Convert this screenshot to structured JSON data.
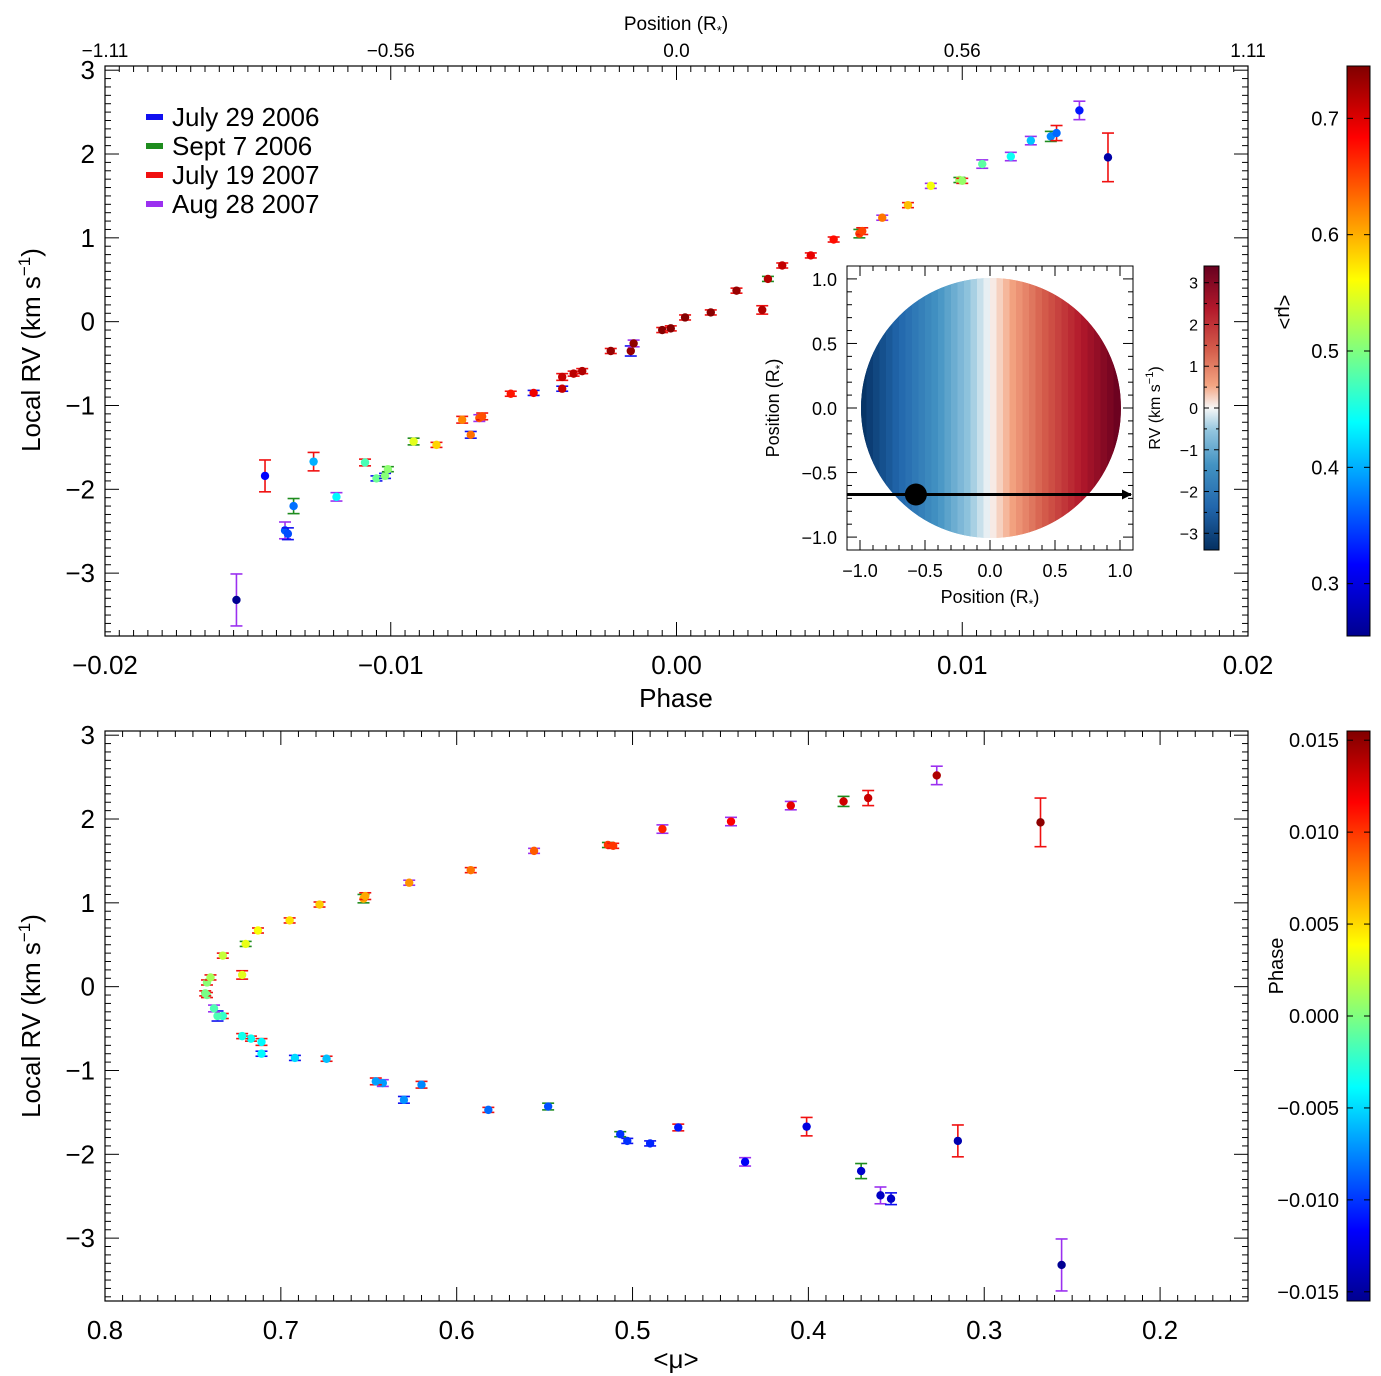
{
  "chart_data": [
    {
      "type": "scatter",
      "xlabel": "Phase",
      "ylabel": "Local RV (km s",
      "ylabel_sup": "−1",
      "ylabel_close": ")",
      "top_axis_label": "Position (R",
      "top_axis_label_sub": "*",
      "top_axis_label_close": ")",
      "xlim": [
        -0.02,
        0.02
      ],
      "ylim": [
        -3.75,
        3.05
      ],
      "xticks": [
        -0.02,
        -0.01,
        0.0,
        0.01,
        0.02
      ],
      "xtick_labels": [
        "−0.02",
        "−0.01",
        "0.00",
        "0.01",
        "0.02"
      ],
      "yticks": [
        -3,
        -2,
        -1,
        0,
        1,
        2,
        3
      ],
      "ytick_labels": [
        "−3",
        "−2",
        "−1",
        "0",
        "1",
        "2",
        "3"
      ],
      "top_ticks": [
        -0.02,
        -0.01,
        0.0,
        0.01,
        0.02
      ],
      "top_tick_labels": [
        "−1.11",
        "−0.56",
        "0.0",
        "0.56",
        "1.11"
      ],
      "legend_position": "top-left",
      "legend": [
        {
          "label": "July 29 2006",
          "color": "#1010f0"
        },
        {
          "label": "Sept 7 2006",
          "color": "#1e8c1e"
        },
        {
          "label": "July 19 2007",
          "color": "#f01010"
        },
        {
          "label": "Aug 28 2007",
          "color": "#9b30f0"
        }
      ],
      "color_encoding": "<μ>",
      "colorbar": {
        "label": "<μ>",
        "range": [
          0.255,
          0.745
        ],
        "ticks": [
          0.3,
          0.4,
          0.5,
          0.6,
          0.7
        ],
        "tick_labels": [
          "0.3",
          "0.4",
          "0.5",
          "0.6",
          "0.7"
        ]
      },
      "points": [
        {
          "x": -0.0154,
          "y": -3.32,
          "err": 0.31,
          "mu": 0.256,
          "night": 3
        },
        {
          "x": -0.0144,
          "y": -1.84,
          "err": 0.19,
          "mu": 0.315,
          "night": 2
        },
        {
          "x": -0.0137,
          "y": -2.49,
          "err": 0.1,
          "mu": 0.359,
          "night": 3
        },
        {
          "x": -0.0136,
          "y": -2.53,
          "err": 0.07,
          "mu": 0.353,
          "night": 0
        },
        {
          "x": -0.0134,
          "y": -2.2,
          "err": 0.09,
          "mu": 0.37,
          "night": 1
        },
        {
          "x": -0.0127,
          "y": -1.67,
          "err": 0.11,
          "mu": 0.401,
          "night": 2
        },
        {
          "x": -0.0119,
          "y": -2.09,
          "err": 0.05,
          "mu": 0.436,
          "night": 3
        },
        {
          "x": -0.0109,
          "y": -1.68,
          "err": 0.04,
          "mu": 0.474,
          "night": 2
        },
        {
          "x": -0.0105,
          "y": -1.87,
          "err": 0.03,
          "mu": 0.49,
          "night": 0
        },
        {
          "x": -0.0102,
          "y": -1.84,
          "err": 0.03,
          "mu": 0.503,
          "night": 0
        },
        {
          "x": -0.0101,
          "y": -1.76,
          "err": 0.03,
          "mu": 0.507,
          "night": 1
        },
        {
          "x": -0.0092,
          "y": -1.43,
          "err": 0.04,
          "mu": 0.548,
          "night": 1
        },
        {
          "x": -0.0084,
          "y": -1.47,
          "err": 0.03,
          "mu": 0.582,
          "night": 2
        },
        {
          "x": -0.0075,
          "y": -1.17,
          "err": 0.04,
          "mu": 0.62,
          "night": 2
        },
        {
          "x": -0.0072,
          "y": -1.35,
          "err": 0.04,
          "mu": 0.63,
          "night": 0
        },
        {
          "x": -0.0069,
          "y": -1.15,
          "err": 0.04,
          "mu": 0.642,
          "night": 3
        },
        {
          "x": -0.0068,
          "y": -1.13,
          "err": 0.04,
          "mu": 0.646,
          "night": 2
        },
        {
          "x": -0.0058,
          "y": -0.86,
          "err": 0.03,
          "mu": 0.674,
          "night": 2
        },
        {
          "x": -0.005,
          "y": -0.85,
          "err": 0.03,
          "mu": 0.692,
          "night": 0
        },
        {
          "x": -0.004,
          "y": -0.8,
          "err": 0.03,
          "mu": 0.711,
          "night": 0
        },
        {
          "x": -0.004,
          "y": -0.66,
          "err": 0.04,
          "mu": 0.711,
          "night": 2
        },
        {
          "x": -0.0036,
          "y": -0.62,
          "err": 0.03,
          "mu": 0.717,
          "night": 2
        },
        {
          "x": -0.0033,
          "y": -0.59,
          "err": 0.03,
          "mu": 0.722,
          "night": 2
        },
        {
          "x": -0.0023,
          "y": -0.35,
          "err": 0.03,
          "mu": 0.733,
          "night": 2
        },
        {
          "x": -0.0016,
          "y": -0.35,
          "err": 0.06,
          "mu": 0.736,
          "night": 0
        },
        {
          "x": -0.0015,
          "y": -0.26,
          "err": 0.04,
          "mu": 0.738,
          "night": 3
        },
        {
          "x": -0.0005,
          "y": -0.1,
          "err": 0.03,
          "mu": 0.742,
          "night": 2
        },
        {
          "x": -0.0002,
          "y": -0.08,
          "err": 0.03,
          "mu": 0.743,
          "night": 2
        },
        {
          "x": 0.0003,
          "y": 0.05,
          "err": 0.03,
          "mu": 0.742,
          "night": 2
        },
        {
          "x": 0.0012,
          "y": 0.11,
          "err": 0.03,
          "mu": 0.74,
          "night": 2
        },
        {
          "x": 0.0021,
          "y": 0.37,
          "err": 0.03,
          "mu": 0.733,
          "night": 2
        },
        {
          "x": 0.003,
          "y": 0.14,
          "err": 0.05,
          "mu": 0.722,
          "night": 2
        },
        {
          "x": 0.0032,
          "y": 0.51,
          "err": 0.03,
          "mu": 0.72,
          "night": 1
        },
        {
          "x": 0.0037,
          "y": 0.67,
          "err": 0.03,
          "mu": 0.713,
          "night": 2
        },
        {
          "x": 0.0047,
          "y": 0.79,
          "err": 0.03,
          "mu": 0.695,
          "night": 2
        },
        {
          "x": 0.0055,
          "y": 0.98,
          "err": 0.03,
          "mu": 0.678,
          "night": 2
        },
        {
          "x": 0.0064,
          "y": 1.05,
          "err": 0.05,
          "mu": 0.653,
          "night": 1
        },
        {
          "x": 0.0065,
          "y": 1.08,
          "err": 0.04,
          "mu": 0.652,
          "night": 2
        },
        {
          "x": 0.0072,
          "y": 1.24,
          "err": 0.03,
          "mu": 0.627,
          "night": 3
        },
        {
          "x": 0.0081,
          "y": 1.39,
          "err": 0.03,
          "mu": 0.592,
          "night": 2
        },
        {
          "x": 0.0089,
          "y": 1.62,
          "err": 0.03,
          "mu": 0.556,
          "night": 3
        },
        {
          "x": 0.0099,
          "y": 1.69,
          "err": 0.03,
          "mu": 0.514,
          "night": 1
        },
        {
          "x": 0.01,
          "y": 1.68,
          "err": 0.03,
          "mu": 0.511,
          "night": 2
        },
        {
          "x": 0.0107,
          "y": 1.88,
          "err": 0.05,
          "mu": 0.483,
          "night": 3
        },
        {
          "x": 0.0117,
          "y": 1.97,
          "err": 0.05,
          "mu": 0.444,
          "night": 3
        },
        {
          "x": 0.0124,
          "y": 2.16,
          "err": 0.05,
          "mu": 0.41,
          "night": 3
        },
        {
          "x": 0.0131,
          "y": 2.21,
          "err": 0.06,
          "mu": 0.38,
          "night": 1
        },
        {
          "x": 0.0133,
          "y": 2.25,
          "err": 0.09,
          "mu": 0.366,
          "night": 2
        },
        {
          "x": 0.0141,
          "y": 2.52,
          "err": 0.11,
          "mu": 0.327,
          "night": 3
        },
        {
          "x": 0.0151,
          "y": 1.96,
          "err": 0.29,
          "mu": 0.268,
          "night": 2
        }
      ]
    },
    {
      "type": "scatter",
      "xlabel": "<μ>",
      "ylabel": "Local RV (km s",
      "ylabel_sup": "−1",
      "ylabel_close": ")",
      "xlim": [
        0.8,
        0.15
      ],
      "ylim": [
        -3.75,
        3.05
      ],
      "xticks": [
        0.8,
        0.7,
        0.6,
        0.5,
        0.4,
        0.3,
        0.2
      ],
      "xtick_labels": [
        "0.8",
        "0.7",
        "0.6",
        "0.5",
        "0.4",
        "0.3",
        "0.2"
      ],
      "yticks": [
        -3,
        -2,
        -1,
        0,
        1,
        2,
        3
      ],
      "ytick_labels": [
        "−3",
        "−2",
        "−1",
        "0",
        "1",
        "2",
        "3"
      ],
      "color_encoding": "Phase",
      "colorbar": {
        "label": "Phase",
        "range": [
          -0.0155,
          0.0155
        ],
        "ticks": [
          -0.015,
          -0.01,
          -0.005,
          0.0,
          0.005,
          0.01,
          0.015
        ],
        "tick_labels": [
          "−0.015",
          "−0.010",
          "−0.005",
          "0.000",
          "0.005",
          "0.010",
          "0.015"
        ]
      },
      "points_source": "same observations as panel 1, x = mu, color = phase"
    }
  ],
  "inset": {
    "type": "heatmap",
    "xlabel": "Position (R",
    "ylabel": "Position (R",
    "label_sub": "*",
    "label_close": ")",
    "xlim": [
      -1.1,
      1.1
    ],
    "ylim": [
      -1.1,
      1.1
    ],
    "ticks": [
      -1.0,
      -0.5,
      0.0,
      0.5,
      1.0
    ],
    "tick_labels": [
      "−1.0",
      "−0.5",
      "0.0",
      "0.5",
      "1.0"
    ],
    "transit_chord_y": -0.67,
    "planet_x": -0.57,
    "colorbar": {
      "label": "RV (km s",
      "label_sup": "−1",
      "label_close": ")",
      "range": [
        -3.4,
        3.4
      ],
      "ticks": [
        -3,
        -2,
        -1,
        0,
        1,
        2,
        3
      ],
      "tick_labels": [
        "−3",
        "−2",
        "−1",
        "0",
        "1",
        "2",
        "3"
      ]
    }
  }
}
